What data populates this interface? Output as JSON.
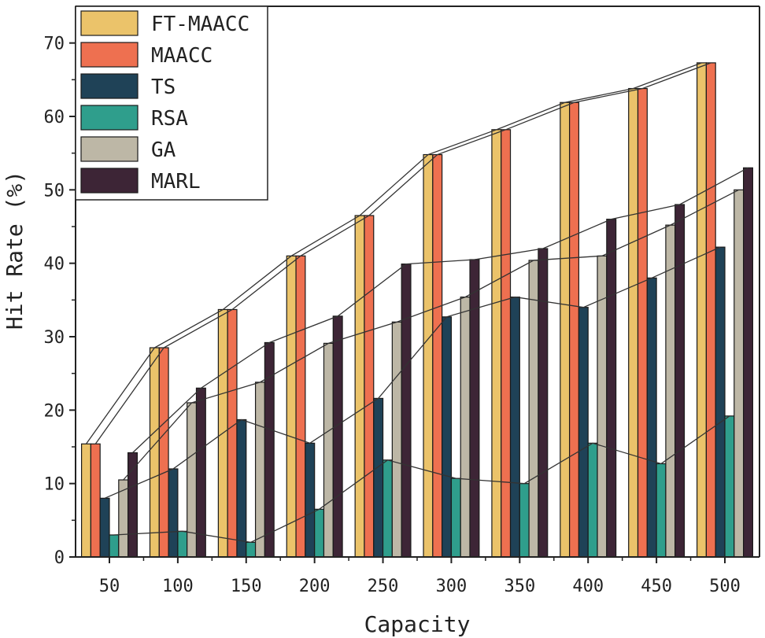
{
  "chart_data": {
    "type": "bar",
    "title": "",
    "xlabel": "Capacity",
    "ylabel": "Hit Rate (%)",
    "ylim": [
      0,
      75
    ],
    "yticks": [
      0,
      10,
      20,
      30,
      40,
      50,
      60,
      70
    ],
    "categories": [
      "50",
      "100",
      "150",
      "200",
      "250",
      "300",
      "350",
      "400",
      "450",
      "500"
    ],
    "legend_position": "top-left",
    "series": [
      {
        "name": "FT-MAACC",
        "color": "#EBC36A",
        "values": [
          15.4,
          28.5,
          33.7,
          41.0,
          46.5,
          54.8,
          58.2,
          61.9,
          63.8,
          67.3
        ]
      },
      {
        "name": "MAACC",
        "color": "#EE7050",
        "values": [
          15.4,
          28.5,
          33.7,
          41.0,
          46.5,
          54.8,
          58.2,
          61.9,
          63.8,
          67.3
        ]
      },
      {
        "name": "TS",
        "color": "#1F4257",
        "values": [
          8.0,
          12.0,
          18.7,
          15.5,
          21.6,
          32.7,
          35.4,
          34.0,
          38.0,
          42.2
        ]
      },
      {
        "name": "RSA",
        "color": "#2F9E8C",
        "values": [
          3.0,
          3.5,
          2.0,
          6.5,
          13.2,
          10.7,
          10.0,
          15.5,
          12.7,
          19.2
        ]
      },
      {
        "name": "GA",
        "color": "#BDB7A6",
        "values": [
          10.5,
          21.0,
          23.8,
          29.1,
          32.0,
          35.4,
          40.4,
          41.0,
          45.2,
          50.0
        ]
      },
      {
        "name": "MARL",
        "color": "#3D2536",
        "values": [
          14.2,
          23.0,
          29.2,
          32.8,
          39.9,
          40.5,
          42.0,
          46.0,
          48.0,
          53.0
        ]
      }
    ]
  }
}
